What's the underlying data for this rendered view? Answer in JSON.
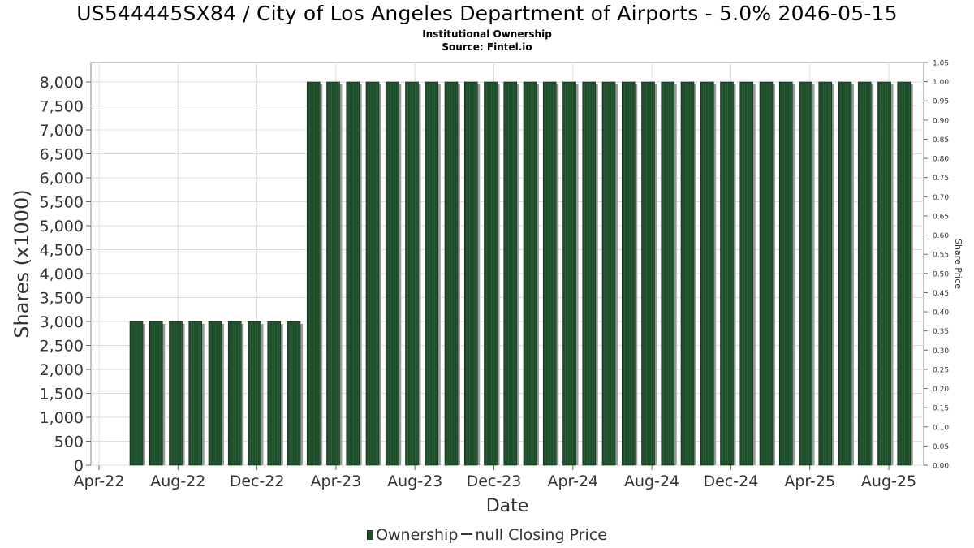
{
  "header": {
    "title": "US544445SX84 / City of Los Angeles Department of Airports - 5.0% 2046-05-15",
    "subtitle": "Institutional Ownership",
    "source": "Source: Fintel.io"
  },
  "legend": {
    "series1": "Ownership",
    "series2": "null Closing Price"
  },
  "colors": {
    "bar_fill": "#1f4d2b",
    "bar_shadow": "#9a9a9a",
    "grid": "#dddddd",
    "axis": "#888888"
  },
  "chart_data": {
    "type": "bar",
    "xlabel": "Date",
    "ylabel": "Shares (x1000)",
    "y2label": "Share Price",
    "ylim": [
      0,
      8000
    ],
    "y2lim": [
      0,
      1.05
    ],
    "yticks": [
      "0",
      "500",
      "1,000",
      "1,500",
      "2,000",
      "2,500",
      "3,000",
      "3,500",
      "4,000",
      "4,500",
      "5,000",
      "5,500",
      "6,000",
      "6,500",
      "7,000",
      "7,500",
      "8,000"
    ],
    "y2ticks": [
      "0.00",
      "0.05",
      "0.10",
      "0.15",
      "0.20",
      "0.25",
      "0.30",
      "0.35",
      "0.40",
      "0.45",
      "0.50",
      "0.55",
      "0.60",
      "0.65",
      "0.70",
      "0.75",
      "0.80",
      "0.85",
      "0.90",
      "0.95",
      "1.00",
      "1.05"
    ],
    "xticks": [
      "Apr-22",
      "Aug-22",
      "Dec-22",
      "Apr-23",
      "Aug-23",
      "Dec-23",
      "Apr-24",
      "Aug-24",
      "Dec-24",
      "Apr-25",
      "Aug-25"
    ],
    "grid": true,
    "legend_position": "bottom-center",
    "series": [
      {
        "name": "Ownership",
        "values": [
          3000,
          3000,
          3000,
          3000,
          3000,
          3000,
          3000,
          3000,
          3000,
          8000,
          8000,
          8000,
          8000,
          8000,
          8000,
          8000,
          8000,
          8000,
          8000,
          8000,
          8000,
          8000,
          8000,
          8000,
          8000,
          8000,
          8000,
          8000,
          8000,
          8000,
          8000,
          8000,
          8000,
          8000,
          8000,
          8000,
          8000,
          8000,
          8000,
          8000
        ]
      }
    ]
  }
}
